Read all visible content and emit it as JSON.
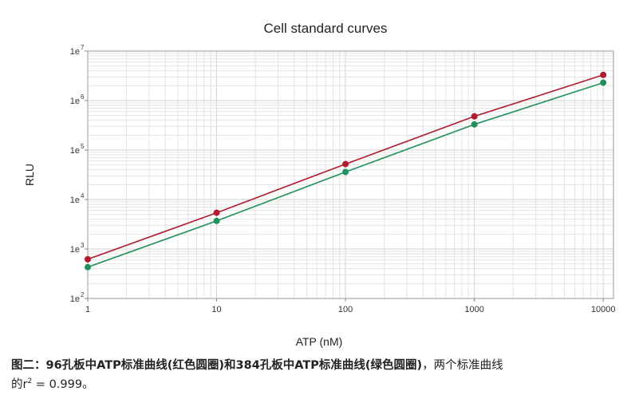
{
  "chart_data": {
    "type": "line",
    "title": "Cell standard curves",
    "xlabel": "ATP (nM)",
    "ylabel": "RLU",
    "xscale": "log",
    "yscale": "log",
    "xlim": [
      1,
      12000
    ],
    "ylim": [
      100,
      10000000
    ],
    "grid": true,
    "x_tick_labels": [
      "1",
      "10",
      "100",
      "1000",
      "10000"
    ],
    "y_tick_labels": [
      {
        "base": "1e",
        "exp": "2"
      },
      {
        "base": "1e",
        "exp": "3"
      },
      {
        "base": "1e",
        "exp": "4"
      },
      {
        "base": "1e",
        "exp": "5"
      },
      {
        "base": "1e",
        "exp": "6"
      },
      {
        "base": "1e",
        "exp": "7"
      }
    ],
    "x": [
      1,
      10,
      100,
      1000,
      10000
    ],
    "series": [
      {
        "color": "#b01c2e",
        "marker": "circle",
        "values": [
          620,
          5400,
          52000,
          480000,
          3300000
        ]
      },
      {
        "color": "#20915a",
        "marker": "circle",
        "values": [
          430,
          3700,
          36000,
          330000,
          2300000
        ]
      }
    ]
  },
  "caption": {
    "bold": "图二：96孔板中ATP标准曲线(红色圆圈)和384孔板中ATP标准曲线(绿色圆圈)",
    "rest": "，两个标准曲线",
    "line2_prefix": "的r",
    "sup": "2",
    "line2_suffix": " = 0.999。"
  }
}
